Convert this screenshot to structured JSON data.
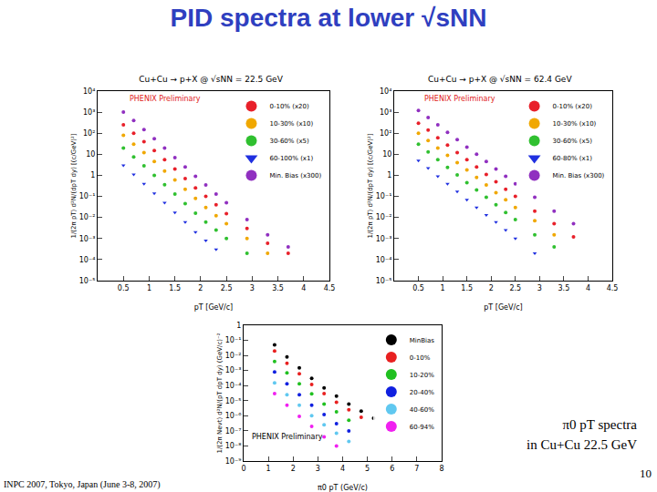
{
  "slide": {
    "title": "PID spectra at lower √sNN",
    "caption": [
      "π0 pT spectra",
      "in Cu+Cu 22.5 GeV"
    ],
    "page": "10",
    "footer": "INPC 2007, Tokyo, Japan (June 3-8, 2007)"
  },
  "chart_data": [
    {
      "type": "scatter",
      "title": "Cu+Cu → p+X @ √sNN = 22.5 GeV",
      "x_label": "pT [GeV/c]",
      "y_label": "1/(2π pT) d²N/(dpT dy) [(c/GeV)²]",
      "annotations": [
        {
          "text": "PHENIX Preliminary",
          "color": "#e02020"
        }
      ],
      "log": "y",
      "legend": "top-right",
      "xlim": [
        0,
        4.5
      ],
      "xticks": [
        0.5,
        1,
        1.5,
        2,
        2.5,
        3,
        3.5,
        4,
        4.5
      ],
      "ylim": [
        1e-05,
        10000
      ],
      "yticks": [
        {
          "value": 1e-05,
          "label": "10⁻⁵"
        },
        {
          "value": 0.0001,
          "label": "10⁻⁴"
        },
        {
          "value": 0.001,
          "label": "10⁻³"
        },
        {
          "value": 0.01,
          "label": "10⁻²"
        },
        {
          "value": 0.1,
          "label": "10⁻¹"
        },
        {
          "value": 1,
          "label": "1"
        },
        {
          "value": 10,
          "label": "10"
        },
        {
          "value": 100,
          "label": "10²"
        },
        {
          "value": 1000,
          "label": "10³"
        },
        {
          "value": 10000,
          "label": "10⁴"
        }
      ],
      "x": [
        0.5,
        0.7,
        0.9,
        1.1,
        1.3,
        1.5,
        1.7,
        1.9,
        2.1,
        2.3,
        2.5,
        2.9,
        3.3,
        3.7
      ],
      "series": [
        {
          "name": "0-10% (x20)",
          "color": "#e8202a",
          "marker": "circle",
          "values": [
            250,
            100,
            40,
            15,
            5.5,
            2,
            0.7,
            0.25,
            0.1,
            0.04,
            0.015,
            0.003,
            0.0006,
            0.0002
          ]
        },
        {
          "name": "10-30% (x10)",
          "color": "#f0a800",
          "marker": "circle",
          "values": [
            80,
            30,
            12,
            4.5,
            1.6,
            0.6,
            0.22,
            0.08,
            0.03,
            0.012,
            0.005,
            0.001,
            0.0002,
            null
          ]
        },
        {
          "name": "30-60% (x5)",
          "color": "#30c030",
          "marker": "circle",
          "values": [
            20,
            7.5,
            2.8,
            1,
            0.36,
            0.13,
            0.045,
            0.016,
            0.006,
            0.0025,
            0.001,
            0.0002,
            null,
            null
          ]
        },
        {
          "name": "60-100% (x1)",
          "color": "#2030e0",
          "marker": "triangle-down",
          "values": [
            3,
            1.1,
            0.4,
            0.14,
            0.05,
            0.017,
            0.006,
            0.002,
            0.0008,
            0.0003,
            null,
            null,
            null,
            null
          ]
        },
        {
          "name": "Min. Bias (x300)",
          "color": "#9030c0",
          "marker": "circle",
          "values": [
            1000,
            400,
            150,
            55,
            20,
            7,
            2.5,
            0.9,
            0.35,
            0.13,
            0.05,
            0.008,
            0.0015,
            0.0004
          ]
        }
      ]
    },
    {
      "type": "scatter",
      "title": "Cu+Cu → p+X @ √sNN = 62.4 GeV",
      "x_label": "pT [GeV/c]",
      "y_label": "1/(2π pT) d²N/(dpT dy) [(c/GeV)²]",
      "annotations": [
        {
          "text": "PHENIX Preliminary",
          "color": "#e02020"
        }
      ],
      "log": "y",
      "legend": "top-right",
      "xlim": [
        0,
        4.5
      ],
      "xticks": [
        0.5,
        1,
        1.5,
        2,
        2.5,
        3,
        3.5,
        4,
        4.5
      ],
      "ylim": [
        1e-05,
        10000
      ],
      "yticks": [
        {
          "value": 1e-05,
          "label": "10⁻⁵"
        },
        {
          "value": 0.0001,
          "label": "10⁻⁴"
        },
        {
          "value": 0.001,
          "label": "10⁻³"
        },
        {
          "value": 0.01,
          "label": "10⁻²"
        },
        {
          "value": 0.1,
          "label": "10⁻¹"
        },
        {
          "value": 1,
          "label": "1"
        },
        {
          "value": 10,
          "label": "10"
        },
        {
          "value": 100,
          "label": "10²"
        },
        {
          "value": 1000,
          "label": "10³"
        },
        {
          "value": 10000,
          "label": "10⁴"
        }
      ],
      "x": [
        0.5,
        0.7,
        0.9,
        1.1,
        1.3,
        1.5,
        1.7,
        1.9,
        2.1,
        2.3,
        2.5,
        2.9,
        3.3,
        3.7
      ],
      "series": [
        {
          "name": "0-10% (x20)",
          "color": "#e8202a",
          "marker": "circle",
          "values": [
            300,
            140,
            60,
            27,
            12,
            5.5,
            2.5,
            1.1,
            0.5,
            0.22,
            0.1,
            0.02,
            0.005,
            0.0012
          ]
        },
        {
          "name": "10-30% (x10)",
          "color": "#f0a800",
          "marker": "circle",
          "values": [
            100,
            45,
            20,
            9,
            4,
            1.8,
            0.8,
            0.35,
            0.15,
            0.07,
            0.03,
            0.007,
            0.0015,
            null
          ]
        },
        {
          "name": "30-60% (x5)",
          "color": "#30c030",
          "marker": "circle",
          "values": [
            30,
            13,
            5.5,
            2.4,
            1.05,
            0.45,
            0.2,
            0.09,
            0.04,
            0.017,
            0.008,
            0.0015,
            0.0004,
            null
          ]
        },
        {
          "name": "60-80% (x1)",
          "color": "#2030e0",
          "marker": "triangle-down",
          "values": [
            5,
            2.2,
            0.9,
            0.4,
            0.17,
            0.07,
            0.03,
            0.013,
            0.006,
            0.0025,
            0.001,
            0.0002,
            null,
            null
          ]
        },
        {
          "name": "Min. Bias (x300)",
          "color": "#9030c0",
          "marker": "circle",
          "values": [
            1200,
            550,
            250,
            110,
            50,
            22,
            10,
            4.5,
            2,
            0.9,
            0.4,
            0.09,
            0.02,
            0.005
          ]
        }
      ]
    },
    {
      "type": "scatter",
      "x_label": "π0 pT (GeV/c)",
      "y_label": "1/(2π Nevt) d²N/(pT dpT dy) (GeV/c)⁻²",
      "annotations": [
        {
          "text": "PHENIX Preliminary",
          "color": "#000000"
        }
      ],
      "log": "y",
      "legend": "top-right",
      "xlim": [
        0,
        8
      ],
      "xticks": [
        0,
        1,
        2,
        3,
        4,
        5,
        6,
        7,
        8
      ],
      "ylim": [
        1e-09,
        1
      ],
      "yticks": [
        {
          "value": 1e-09,
          "label": "10⁻⁹"
        },
        {
          "value": 1e-08,
          "label": "10⁻⁸"
        },
        {
          "value": 1e-07,
          "label": "10⁻⁷"
        },
        {
          "value": 1e-06,
          "label": "10⁻⁶"
        },
        {
          "value": 1e-05,
          "label": "10⁻⁵"
        },
        {
          "value": 0.0001,
          "label": "10⁻⁴"
        },
        {
          "value": 0.001,
          "label": "10⁻³"
        },
        {
          "value": 0.01,
          "label": "10⁻²"
        },
        {
          "value": 0.1,
          "label": "10⁻¹"
        },
        {
          "value": 1,
          "label": "1"
        }
      ],
      "x": [
        1.25,
        1.75,
        2.25,
        2.75,
        3.25,
        3.75,
        4.25,
        4.75,
        5.25
      ],
      "series": [
        {
          "name": "MinBias",
          "color": "#000000",
          "marker": "circle",
          "values": [
            0.05,
            0.008,
            0.0015,
            0.0003,
            7e-05,
            2e-05,
            6e-06,
            2e-06,
            7e-07
          ]
        },
        {
          "name": "0-10%",
          "color": "#e82020",
          "marker": "circle",
          "values": [
            0.02,
            0.003,
            0.0006,
            0.00012,
            3e-05,
            8e-06,
            2.5e-06,
            8e-07,
            null
          ]
        },
        {
          "name": "10-20%",
          "color": "#20c020",
          "marker": "circle",
          "values": [
            0.004,
            0.0007,
            0.00013,
            2.8e-05,
            6e-06,
            1.8e-06,
            5e-07,
            null,
            null
          ]
        },
        {
          "name": "20-40%",
          "color": "#1020e0",
          "marker": "circle",
          "values": [
            0.0008,
            0.00013,
            2.5e-05,
            5e-06,
            1.2e-06,
            3e-07,
            1e-07,
            null,
            null
          ]
        },
        {
          "name": "40-60%",
          "color": "#60c8f0",
          "marker": "circle",
          "values": [
            0.00015,
            2.5e-05,
            5e-06,
            1e-06,
            2.5e-07,
            7e-08,
            2e-08,
            null,
            null
          ]
        },
        {
          "name": "60-94%",
          "color": "#f020f0",
          "marker": "circle",
          "values": [
            3e-05,
            5e-06,
            9e-07,
            2e-07,
            4e-08,
            1e-08,
            null,
            null,
            null
          ]
        }
      ]
    }
  ]
}
